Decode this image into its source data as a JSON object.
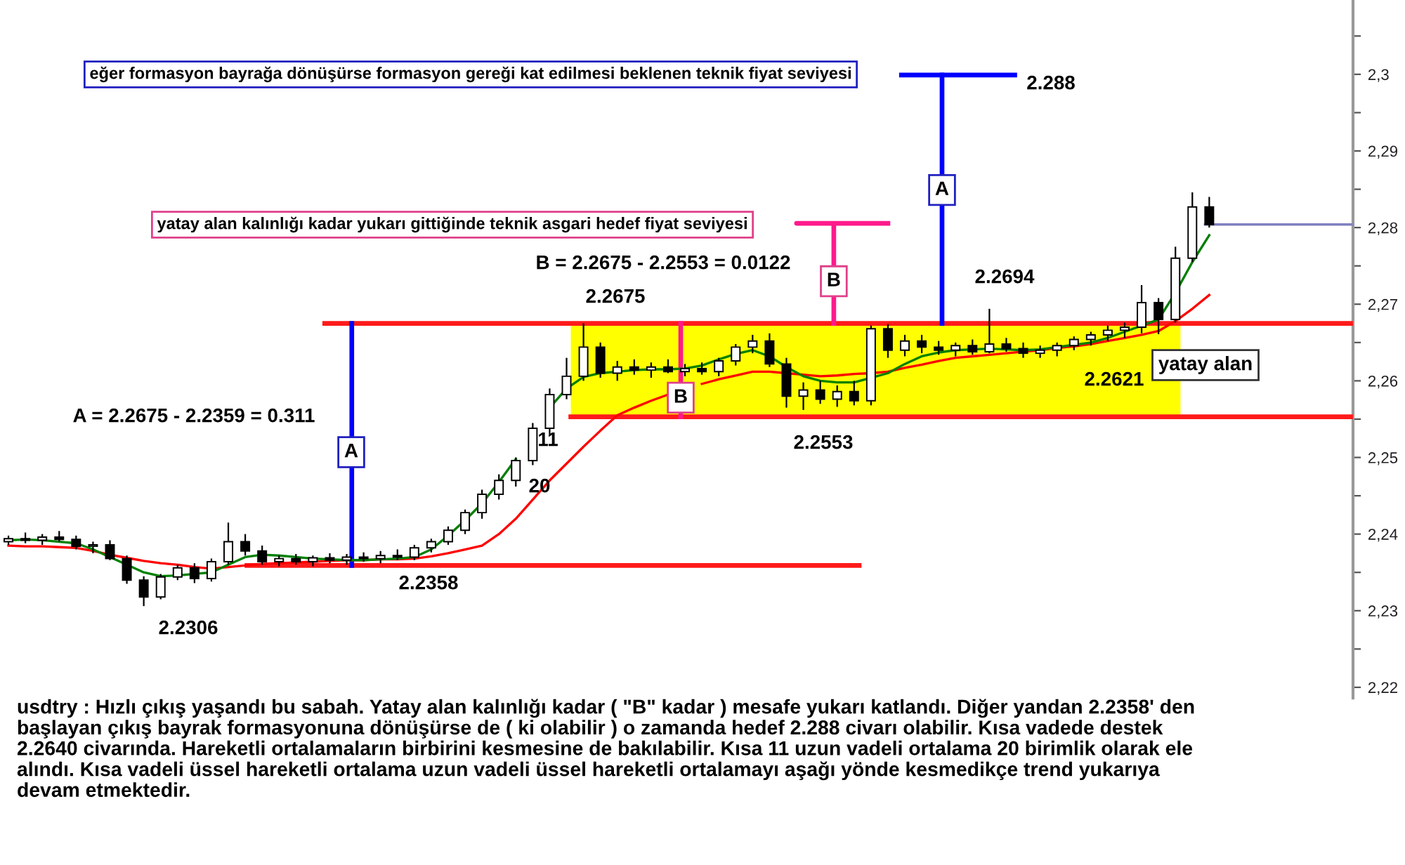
{
  "chart_data": {
    "type": "candlestick",
    "categories": [
      null,
      null,
      null,
      null,
      null,
      null,
      null,
      null,
      null,
      null,
      null,
      null,
      null,
      null,
      null,
      null,
      null,
      null,
      null,
      null,
      null,
      null,
      null,
      null,
      null,
      null,
      null,
      null,
      null,
      null,
      null,
      null,
      null,
      null,
      null,
      null,
      null,
      null,
      null,
      null,
      null,
      null,
      null,
      null,
      null,
      null,
      null,
      null,
      null,
      null,
      null,
      null,
      null,
      null,
      null,
      null,
      null,
      null,
      null,
      null,
      null,
      null,
      null,
      null,
      null,
      null,
      null,
      null,
      null,
      null,
      null,
      null,
      null,
      null,
      null,
      null,
      null,
      null,
      null,
      null
    ],
    "ohlc": [
      [
        2.239,
        2.2398,
        2.2386,
        2.2394
      ],
      [
        2.2394,
        2.2402,
        2.2388,
        2.2392
      ],
      [
        2.2392,
        2.24,
        2.2386,
        2.2396
      ],
      [
        2.2396,
        2.2404,
        2.239,
        2.2393
      ],
      [
        2.2393,
        2.2398,
        2.238,
        2.2384
      ],
      [
        2.2384,
        2.239,
        2.2375,
        2.2386
      ],
      [
        2.2386,
        2.2392,
        2.2366,
        2.2368
      ],
      [
        2.2368,
        2.2372,
        2.2335,
        2.234
      ],
      [
        2.234,
        2.2345,
        2.2306,
        2.2318
      ],
      [
        2.2318,
        2.2348,
        2.2315,
        2.2344
      ],
      [
        2.2344,
        2.236,
        2.234,
        2.2356
      ],
      [
        2.2356,
        2.2362,
        2.2336,
        2.2342
      ],
      [
        2.2342,
        2.2368,
        2.2338,
        2.2364
      ],
      [
        2.2364,
        2.2415,
        2.236,
        2.239
      ],
      [
        2.239,
        2.24,
        2.2372,
        2.2378
      ],
      [
        2.2378,
        2.2385,
        2.236,
        2.2364
      ],
      [
        2.2364,
        2.2372,
        2.2358,
        2.2368
      ],
      [
        2.2368,
        2.2374,
        2.236,
        2.2364
      ],
      [
        2.2364,
        2.2372,
        2.2358,
        2.2369
      ],
      [
        2.2369,
        2.2375,
        2.2362,
        2.2366
      ],
      [
        2.2366,
        2.2374,
        2.236,
        2.237
      ],
      [
        2.237,
        2.2376,
        2.2364,
        2.2368
      ],
      [
        2.2368,
        2.2378,
        2.2362,
        2.2372
      ],
      [
        2.2372,
        2.238,
        2.2366,
        2.237
      ],
      [
        2.237,
        2.2386,
        2.2366,
        2.2382
      ],
      [
        2.2382,
        2.2394,
        2.2376,
        2.239
      ],
      [
        2.239,
        2.241,
        2.2386,
        2.2405
      ],
      [
        2.2405,
        2.2432,
        2.24,
        2.2428
      ],
      [
        2.2428,
        2.2458,
        2.242,
        2.2452
      ],
      [
        2.2452,
        2.2478,
        2.2445,
        2.247
      ],
      [
        2.247,
        2.25,
        2.2462,
        2.2496
      ],
      [
        2.2496,
        2.2545,
        2.249,
        2.2538
      ],
      [
        2.2538,
        2.259,
        2.253,
        2.2582
      ],
      [
        2.2582,
        2.263,
        2.2576,
        2.2606
      ],
      [
        2.2606,
        2.2675,
        2.26,
        2.2644
      ],
      [
        2.2644,
        2.265,
        2.2604,
        2.261
      ],
      [
        2.261,
        2.2626,
        2.26,
        2.2618
      ],
      [
        2.2618,
        2.2628,
        2.2608,
        2.2614
      ],
      [
        2.2614,
        2.2624,
        2.2604,
        2.2618
      ],
      [
        2.2618,
        2.2628,
        2.261,
        2.2612
      ],
      [
        2.2612,
        2.2622,
        2.2606,
        2.2616
      ],
      [
        2.2616,
        2.2624,
        2.2608,
        2.2612
      ],
      [
        2.2612,
        2.263,
        2.2606,
        2.2626
      ],
      [
        2.2626,
        2.2648,
        2.262,
        2.2644
      ],
      [
        2.2644,
        2.266,
        2.2636,
        2.2652
      ],
      [
        2.2652,
        2.2662,
        2.2618,
        2.2622
      ],
      [
        2.2622,
        2.263,
        2.2565,
        2.258
      ],
      [
        2.258,
        2.2598,
        2.2562,
        2.2588
      ],
      [
        2.2588,
        2.26,
        2.257,
        2.2576
      ],
      [
        2.2576,
        2.2594,
        2.2566,
        2.2586
      ],
      [
        2.2586,
        2.26,
        2.2568,
        2.2574
      ],
      [
        2.2574,
        2.2672,
        2.2568,
        2.2668
      ],
      [
        2.2668,
        2.2674,
        2.263,
        2.264
      ],
      [
        2.264,
        2.266,
        2.2632,
        2.2652
      ],
      [
        2.2652,
        2.266,
        2.2636,
        2.2644
      ],
      [
        2.2644,
        2.2652,
        2.2634,
        2.264
      ],
      [
        2.264,
        2.265,
        2.2632,
        2.2646
      ],
      [
        2.2646,
        2.2654,
        2.2634,
        2.2638
      ],
      [
        2.2638,
        2.2694,
        2.2636,
        2.2648
      ],
      [
        2.2648,
        2.2656,
        2.2638,
        2.2642
      ],
      [
        2.2642,
        2.265,
        2.263,
        2.2636
      ],
      [
        2.2636,
        2.2646,
        2.263,
        2.264
      ],
      [
        2.264,
        2.265,
        2.2632,
        2.2646
      ],
      [
        2.2646,
        2.2658,
        2.264,
        2.2654
      ],
      [
        2.2654,
        2.2664,
        2.2646,
        2.266
      ],
      [
        2.266,
        2.2672,
        2.2652,
        2.2666
      ],
      [
        2.2666,
        2.2676,
        2.2656,
        2.267
      ],
      [
        2.267,
        2.2725,
        2.2662,
        2.2702
      ],
      [
        2.2702,
        2.2708,
        2.2661,
        2.268
      ],
      [
        2.268,
        2.2775,
        2.2676,
        2.276
      ],
      [
        2.276,
        2.2846,
        2.2755,
        2.2827
      ],
      [
        2.2827,
        2.284,
        2.28,
        2.2804
      ],
      null,
      null,
      null,
      null,
      null,
      null,
      null,
      null
    ],
    "series": [
      {
        "type": "line",
        "color": "#ff0000",
        "values": [
          2.2385,
          2.2384,
          2.2384,
          2.2383,
          2.2382,
          2.2378,
          2.2373,
          2.2369,
          2.2365,
          2.2362,
          2.236,
          2.2357,
          2.2355,
          2.2357,
          2.2359,
          2.2361,
          2.2362,
          2.2363,
          2.2364,
          2.2365,
          2.2366,
          2.2366,
          2.2367,
          2.2367,
          2.2368,
          2.2371,
          2.2375,
          2.238,
          2.2385,
          2.24,
          2.242,
          2.2445,
          2.247,
          2.2492,
          2.2514,
          2.2535,
          2.2555,
          2.2565,
          2.2574,
          2.2582,
          null,
          2.2596,
          2.2602,
          2.2607,
          2.2612,
          2.2612,
          2.261,
          2.2608,
          2.2606,
          2.2607,
          2.2609,
          2.261,
          2.2612,
          2.2617,
          2.2621,
          2.2626,
          2.263,
          2.2632,
          2.2634,
          2.2636,
          2.2638,
          2.264,
          2.2643,
          2.2645,
          2.2648,
          2.2652,
          2.2656,
          2.266,
          2.2665,
          2.2678,
          2.2694,
          2.2712,
          null,
          null,
          null,
          null,
          null,
          null,
          null,
          null
        ]
      },
      {
        "type": "line",
        "color": "#008000",
        "values": [
          2.2392,
          2.2393,
          2.2392,
          2.239,
          2.2388,
          2.238,
          2.237,
          2.236,
          2.235,
          2.2345,
          2.2346,
          2.2348,
          2.235,
          2.236,
          2.237,
          2.2373,
          2.2372,
          2.237,
          2.2368,
          2.2367,
          2.2366,
          2.2366,
          2.2367,
          2.2368,
          2.237,
          2.238,
          2.2398,
          2.2418,
          2.244,
          2.2468,
          2.2498,
          null,
          2.2565,
          2.259,
          2.2605,
          2.261,
          2.2612,
          2.2614,
          2.2615,
          2.2615,
          2.2616,
          2.262,
          2.2628,
          2.2635,
          2.264,
          2.2632,
          2.2618,
          2.2606,
          2.26,
          2.2598,
          2.2598,
          2.2604,
          2.261,
          2.2622,
          2.2632,
          2.2637,
          2.264,
          2.2641,
          2.2642,
          2.2641,
          2.264,
          2.2641,
          2.2644,
          2.2647,
          2.265,
          2.2656,
          2.2664,
          2.2672,
          2.268,
          2.2715,
          2.2755,
          2.279,
          null,
          null,
          null,
          null,
          null,
          null,
          null,
          null
        ]
      }
    ],
    "ylim": [
      2.2186,
      2.3097
    ],
    "yticks": [
      {
        "value": 2.22,
        "label": "2,22"
      },
      {
        "value": 2.225,
        "label": null
      },
      {
        "value": 2.23,
        "label": "2,23"
      },
      {
        "value": 2.235,
        "label": null
      },
      {
        "value": 2.24,
        "label": "2,24"
      },
      {
        "value": 2.245,
        "label": null
      },
      {
        "value": 2.25,
        "label": "2,25"
      },
      {
        "value": 2.255,
        "label": null
      },
      {
        "value": 2.26,
        "label": "2,26"
      },
      {
        "value": 2.265,
        "label": null
      },
      {
        "value": 2.27,
        "label": "2,27"
      },
      {
        "value": 2.275,
        "label": null
      },
      {
        "value": 2.28,
        "label": "2,28"
      },
      {
        "value": 2.285,
        "label": null
      },
      {
        "value": 2.29,
        "label": "2,29"
      },
      {
        "value": 2.295,
        "label": null
      },
      {
        "value": 2.3,
        "label": "2,3"
      },
      {
        "value": 2.305,
        "label": null
      }
    ],
    "tick_labels": "y",
    "ref_lines": [
      {
        "axis": "y",
        "value": 2.2675,
        "color": "#ff1a1a"
      },
      {
        "axis": "y",
        "value": 2.2553,
        "color": "#ff1a1a"
      },
      {
        "axis": "y",
        "value": 2.2359,
        "color": "#ff1a1a"
      },
      {
        "axis": "y",
        "value": 2.2999,
        "color": "#0000ff"
      },
      {
        "axis": "y",
        "value": 2.2804,
        "color": "#8080c0"
      }
    ],
    "bands": [
      {
        "axis": "y",
        "from": 2.2553,
        "to": 2.2675,
        "color": "#ffff00"
      }
    ],
    "annotations": [
      "eğer formasyon bayrağa dönüşürse formasyon gereği kat edilmesi beklenen teknik fiyat seviyesi",
      "2.288",
      "yatay alan kalınlığı kadar yukarı gittiğinde teknik asgari hedef fiyat seviyesi",
      "B = 2.2675 - 2.2553 = 0.0122",
      "2.2675",
      "2.2694",
      "A = 2.2675 - 2.2359 = 0.311",
      "A",
      {
        "text": "B",
        "y": 2.2578
      },
      {
        "text": "B",
        "y": 2.273
      },
      {
        "text": "A",
        "y": 2.2849
      },
      "11",
      "20",
      "2.2553",
      "2.2621",
      "yatay alan",
      "2.2358",
      "2.2306",
      "usdtry : Hızlı çıkış yaşandı bu sabah. Yatay alan kalınlığı kadar ( \"B\" kadar ) mesafe yukarı katlandı. Diğer yandan 2.2358' den\nbaşlayan çıkış bayrak formasyonuna dönüşürse de ( ki olabilir ) o zamanda hedef 2.288 civarı olabilir. Kısa vadede destek\n2.2640 civarında. Hareketli ortalamaların birbirini kesmesine de bakılabilir. Kısa 11 uzun vadeli ortalama 20 birimlik olarak ele\nalındı. Kısa vadeli üssel hareketli ortalama uzun vadeli üssel hareketli ortalamayı aşağı yönde kesmedikçe trend yukarıya\ndevam etmektedir."
    ]
  }
}
